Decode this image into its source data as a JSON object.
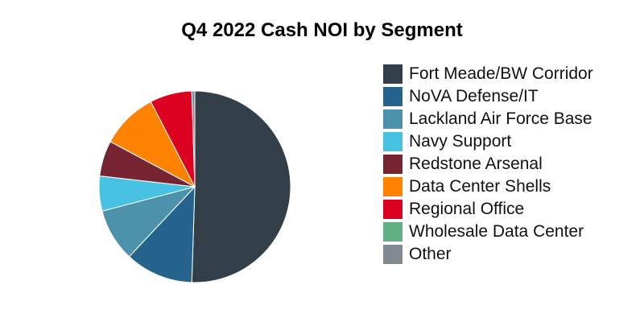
{
  "chart_data": {
    "type": "pie",
    "title": "Q4 2022 Cash NOI by Segment",
    "legend_position": "right",
    "start_angle": "12 o'clock, clockwise",
    "slices": [
      {
        "label": "Fort Meade/BW Corridor",
        "value": 50.5,
        "color": "#333f48"
      },
      {
        "label": "NoVA Defense/IT",
        "value": 11.5,
        "color": "#26648e"
      },
      {
        "label": "Lackland Air Force Base",
        "value": 8.9,
        "color": "#4b92aa"
      },
      {
        "label": "Navy Support",
        "value": 5.9,
        "color": "#48c2e3"
      },
      {
        "label": "Redstone Arsenal",
        "value": 6.0,
        "color": "#772432"
      },
      {
        "label": "Data Center Shells",
        "value": 9.6,
        "color": "#ff8200"
      },
      {
        "label": "Regional Office",
        "value": 7.1,
        "color": "#dc0021"
      },
      {
        "label": "Wholesale Data Center",
        "value": 0.0,
        "color": "#5fb082"
      },
      {
        "label": "Other",
        "value": 0.5,
        "color": "#808a90"
      }
    ]
  }
}
